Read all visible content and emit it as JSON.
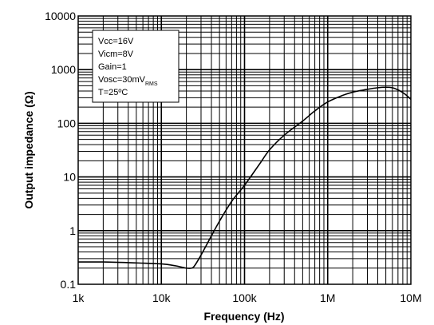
{
  "chart_data": {
    "type": "line",
    "title": "",
    "xlabel": "Frequency (Hz)",
    "ylabel": "Output impedance (Ω)",
    "xscale": "log",
    "yscale": "log",
    "xlim": [
      1000,
      10000000
    ],
    "ylim": [
      0.1,
      10000
    ],
    "grid": true,
    "x_ticks": [
      {
        "value": 1000,
        "label": "1k"
      },
      {
        "value": 10000,
        "label": "10k"
      },
      {
        "value": 100000,
        "label": "100k"
      },
      {
        "value": 1000000,
        "label": "1M"
      },
      {
        "value": 10000000,
        "label": "10M"
      }
    ],
    "y_ticks": [
      {
        "value": 0.1,
        "label": "0.1"
      },
      {
        "value": 1,
        "label": "1"
      },
      {
        "value": 10,
        "label": "10"
      },
      {
        "value": 100,
        "label": "100"
      },
      {
        "value": 1000,
        "label": "1000"
      },
      {
        "value": 10000,
        "label": "10000"
      }
    ],
    "annotations": {
      "vcc": "Vcc=16V",
      "vicm": "Vicm=8V",
      "gain": "Gain=1",
      "vosc": "Vosc=30mV",
      "vosc_sub": "RMS",
      "temp": "T=25ºC"
    },
    "series": [
      {
        "x": [
          1000,
          2000,
          5000,
          10000,
          15000,
          20000,
          23000,
          25000,
          30000,
          40000,
          50000,
          70000,
          100000,
          150000,
          200000,
          300000,
          500000,
          700000,
          1000000,
          1500000,
          2000000,
          3000000,
          4000000,
          5000000,
          6000000,
          7000000,
          8500000,
          10000000
        ],
        "y": [
          0.26,
          0.26,
          0.25,
          0.24,
          0.22,
          0.2,
          0.2,
          0.22,
          0.35,
          0.8,
          1.5,
          3.5,
          7,
          17,
          32,
          60,
          110,
          170,
          250,
          330,
          380,
          430,
          460,
          470,
          460,
          420,
          350,
          280
        ]
      }
    ]
  }
}
